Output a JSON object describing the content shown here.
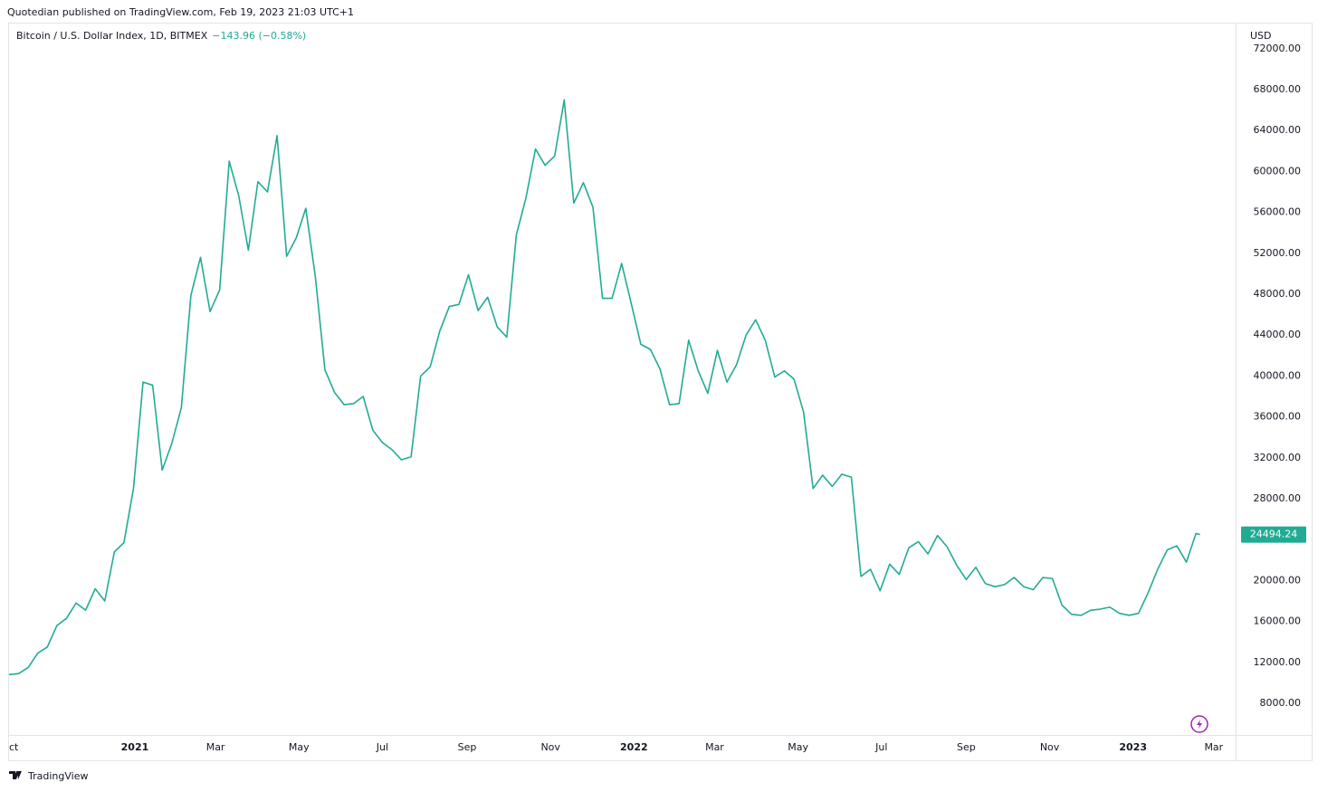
{
  "header": {
    "publisher": "Quotedian published on TradingView.com, Feb 19, 2023 21:03 UTC+1"
  },
  "footer": {
    "brand": "TradingView"
  },
  "chart_data": {
    "type": "line",
    "title": "Bitcoin / U.S. Dollar Index, 1D, BITMEX",
    "change": "−143.96 (−0.58%)",
    "y_axis_label": "USD",
    "x": [
      0,
      7,
      14,
      21,
      28,
      35,
      42,
      49,
      56,
      63,
      70,
      77,
      84,
      91,
      98,
      105,
      112,
      119,
      126,
      133,
      140,
      147,
      154,
      161,
      168,
      175,
      182,
      189,
      196,
      203,
      210,
      217,
      224,
      231,
      238,
      245,
      252,
      259,
      266,
      273,
      280,
      287,
      294,
      301,
      308,
      315,
      322,
      329,
      336,
      343,
      350,
      357,
      364,
      371,
      378,
      385,
      392,
      399,
      406,
      413,
      420,
      427,
      434,
      441,
      448,
      455,
      462,
      469,
      476,
      483,
      490,
      497,
      504,
      511,
      518,
      525,
      532,
      539,
      546,
      553,
      560,
      567,
      574,
      581,
      588,
      595,
      602,
      609,
      616,
      623,
      630,
      637,
      644,
      651,
      658,
      665,
      672,
      679,
      686,
      693,
      700,
      707,
      714,
      721,
      728,
      735,
      742,
      749,
      756,
      763,
      770,
      777,
      784,
      791,
      798,
      805,
      812,
      819,
      826,
      833,
      840,
      847,
      854,
      861,
      868,
      871
    ],
    "series": [
      {
        "name": "BTCUSD",
        "color": "#22ab94",
        "values": [
          10800,
          10900,
          11500,
          12900,
          13500,
          15600,
          16300,
          17800,
          17100,
          19200,
          18000,
          22800,
          23700,
          29000,
          39400,
          39100,
          30800,
          33400,
          36900,
          47900,
          51600,
          46300,
          48400,
          61000,
          57600,
          52300,
          59000,
          58000,
          63500,
          51700,
          53500,
          56400,
          49700,
          40600,
          38400,
          37200,
          37300,
          38000,
          34700,
          33500,
          32800,
          31800,
          32100,
          40000,
          40900,
          44400,
          46800,
          47000,
          49900,
          46400,
          47700,
          44800,
          43800,
          53800,
          57400,
          62200,
          60600,
          61500,
          67000,
          56900,
          58900,
          56500,
          47600,
          47600,
          51000,
          47100,
          43100,
          42600,
          40700,
          37200,
          37300,
          43500,
          40500,
          38300,
          42500,
          39400,
          41100,
          44000,
          45500,
          43500,
          39900,
          40500,
          39700,
          36500,
          29000,
          30300,
          29200,
          30400,
          30100,
          20400,
          21100,
          19000,
          21600,
          20600,
          23200,
          23800,
          22600,
          24400,
          23300,
          21500,
          20100,
          21300,
          19700,
          19400,
          19600,
          20300,
          19400,
          19100,
          20300,
          20200,
          17600,
          16700,
          16600,
          17100,
          17200,
          17400,
          16800,
          16600,
          16800,
          18800,
          21100,
          23000,
          23400,
          21800,
          24600,
          24494.24
        ]
      }
    ],
    "xlim": [
      0,
      897
    ],
    "xticks": [
      {
        "value": 0,
        "label": "ct"
      },
      {
        "value": 92,
        "label": "2021"
      },
      {
        "value": 151,
        "label": "Mar"
      },
      {
        "value": 212,
        "label": "May"
      },
      {
        "value": 273,
        "label": "Jul"
      },
      {
        "value": 335,
        "label": "Sep"
      },
      {
        "value": 396,
        "label": "Nov"
      },
      {
        "value": 457,
        "label": "2022"
      },
      {
        "value": 516,
        "label": "Mar"
      },
      {
        "value": 577,
        "label": "May"
      },
      {
        "value": 638,
        "label": "Jul"
      },
      {
        "value": 700,
        "label": "Sep"
      },
      {
        "value": 761,
        "label": "Nov"
      },
      {
        "value": 822,
        "label": "2023"
      },
      {
        "value": 881,
        "label": "Mar"
      }
    ],
    "ylim": [
      4900,
      74550
    ],
    "yticks": [
      {
        "value": 8000,
        "label": "8000.00"
      },
      {
        "value": 12000,
        "label": "12000.00"
      },
      {
        "value": 16000,
        "label": "16000.00"
      },
      {
        "value": 20000,
        "label": "20000.00"
      },
      {
        "value": 24000,
        "label": "24000.00"
      },
      {
        "value": 28000,
        "label": "28000.00"
      },
      {
        "value": 32000,
        "label": "32000.00"
      },
      {
        "value": 36000,
        "label": "36000.00"
      },
      {
        "value": 40000,
        "label": "40000.00"
      },
      {
        "value": 44000,
        "label": "44000.00"
      },
      {
        "value": 48000,
        "label": "48000.00"
      },
      {
        "value": 52000,
        "label": "52000.00"
      },
      {
        "value": 56000,
        "label": "56000.00"
      },
      {
        "value": 60000,
        "label": "60000.00"
      },
      {
        "value": 64000,
        "label": "64000.00"
      },
      {
        "value": 68000,
        "label": "68000.00"
      },
      {
        "value": 72000,
        "label": "72000.00"
      }
    ],
    "grid": false
  }
}
